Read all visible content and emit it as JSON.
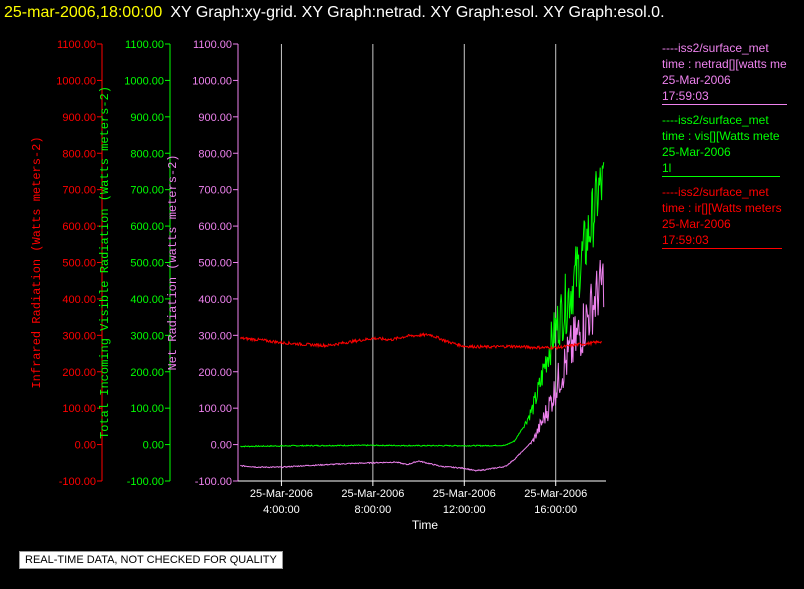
{
  "header": {
    "timestamp": "25-mar-2006,18:00:00",
    "graphs": "XY Graph:xy-grid.  XY Graph:netrad.  XY Graph:esol.  XY Graph:esol.0."
  },
  "legend": [
    {
      "source": "----iss2/surface_met",
      "field": "time : netrad[][watts me",
      "date": "25-Mar-2006",
      "time": "17:59:03",
      "color": "#ee82ee"
    },
    {
      "source": "----iss2/surface_met",
      "field": "time : vis[][Watts mete",
      "date": "25-Mar-2006",
      "time": "1l",
      "color": "#00ff00"
    },
    {
      "source": "----iss2/surface_met",
      "field": "time : ir[][Watts meters",
      "date": "25-Mar-2006",
      "time": "17:59:03",
      "color": "#ff0000"
    }
  ],
  "quality_note": "REAL-TIME DATA, NOT CHECKED FOR QUALITY",
  "chart_data": {
    "type": "line",
    "xlabel": "Time",
    "x_ticks": [
      {
        "date": "25-Mar-2006",
        "time": "4:00:00",
        "hours": 4
      },
      {
        "date": "25-Mar-2006",
        "time": "8:00:00",
        "hours": 8
      },
      {
        "date": "25-Mar-2006",
        "time": "12:00:00",
        "hours": 12
      },
      {
        "date": "25-Mar-2006",
        "time": "16:00:00",
        "hours": 16
      }
    ],
    "xlim_hours": [
      2.1,
      18.2
    ],
    "y_axes": [
      {
        "label": "Infrared Radiation (Watts meters-2)",
        "color": "#ff0000",
        "ylim": [
          -100,
          1100
        ]
      },
      {
        "label": "Total Incoming Visible Radiation (Watts meters-2)",
        "color": "#00ff00",
        "ylim": [
          -100,
          1100
        ]
      },
      {
        "label": "Net Radiation (watts meters-2)",
        "color": "#ee82ee",
        "ylim": [
          -100,
          1100
        ]
      }
    ],
    "y_ticks": [
      -100,
      0,
      100,
      200,
      300,
      400,
      500,
      600,
      700,
      800,
      900,
      1000,
      1100
    ],
    "grid": "vertical lines at x ticks",
    "series": [
      {
        "name": "ir",
        "color": "#ff0000",
        "noise": 4,
        "points": [
          [
            2.2,
            292
          ],
          [
            3,
            288
          ],
          [
            4,
            280
          ],
          [
            5,
            275
          ],
          [
            6,
            272
          ],
          [
            7,
            282
          ],
          [
            8,
            292
          ],
          [
            8.8,
            288
          ],
          [
            9.5,
            298
          ],
          [
            10.5,
            302
          ],
          [
            11.3,
            282
          ],
          [
            12,
            270
          ],
          [
            13,
            268
          ],
          [
            14,
            270
          ],
          [
            15,
            267
          ],
          [
            16,
            266
          ],
          [
            16.5,
            270
          ],
          [
            17,
            275
          ],
          [
            17.5,
            278
          ],
          [
            18,
            283
          ]
        ]
      },
      {
        "name": "vis",
        "color": "#00ff00",
        "noise": 0,
        "points": [
          [
            2.2,
            -5
          ],
          [
            5,
            -3
          ],
          [
            8,
            -2
          ],
          [
            10,
            -3
          ],
          [
            12,
            -3
          ],
          [
            13,
            -3
          ],
          [
            13.8,
            -2
          ],
          [
            14.2,
            10
          ],
          [
            14.6,
            50
          ],
          [
            15,
            100
          ],
          [
            15.3,
            160
          ],
          [
            15.6,
            240
          ],
          [
            16,
            320
          ],
          [
            16.4,
            380
          ],
          [
            16.8,
            450
          ],
          [
            17.2,
            520
          ],
          [
            17.6,
            620
          ],
          [
            17.9,
            700
          ],
          [
            18.1,
            715
          ]
        ]
      },
      {
        "name": "netrad",
        "color": "#ee82ee",
        "noise": 0,
        "points": [
          [
            2.2,
            -58
          ],
          [
            3,
            -62
          ],
          [
            4,
            -62
          ],
          [
            5,
            -58
          ],
          [
            6,
            -55
          ],
          [
            7,
            -52
          ],
          [
            8,
            -50
          ],
          [
            9,
            -48
          ],
          [
            9.5,
            -55
          ],
          [
            10,
            -45
          ],
          [
            11,
            -60
          ],
          [
            12,
            -65
          ],
          [
            12.5,
            -72
          ],
          [
            13,
            -68
          ],
          [
            13.8,
            -60
          ],
          [
            14.2,
            -40
          ],
          [
            14.6,
            -15
          ],
          [
            15,
            10
          ],
          [
            15.4,
            60
          ],
          [
            15.8,
            120
          ],
          [
            16.2,
            190
          ],
          [
            16.6,
            250
          ],
          [
            17,
            300
          ],
          [
            17.4,
            350
          ],
          [
            17.8,
            410
          ],
          [
            18.1,
            455
          ]
        ]
      }
    ]
  }
}
